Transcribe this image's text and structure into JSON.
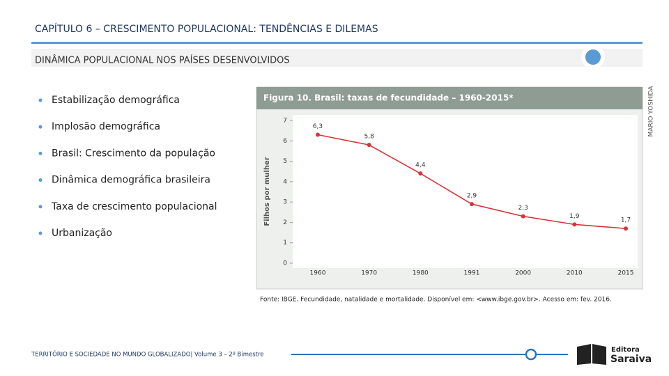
{
  "header": {
    "title": "CAPÍTULO 6 – CRESCIMENTO POPULACIONAL: TENDÊNCIAS E DILEMAS",
    "subtitle": "DINÂMICA POPULACIONAL NOS PAÍSES DESENVOLVIDOS"
  },
  "bullets": [
    "Estabilização demográfica",
    "Implosão demográfica",
    "Brasil: Crescimento da população",
    "Dinâmica demográfica brasileira",
    "Taxa de crescimento populacional",
    "Urbanização"
  ],
  "credit": "MARIO YOSHIDA",
  "chart_data": {
    "type": "line",
    "title": "Figura 10. Brasil: taxas de fecundidade – 1960-2015*",
    "y_label": "Filhos por mulher",
    "categories": [
      "1960",
      "1970",
      "1980",
      "1991",
      "2000",
      "2010",
      "2015"
    ],
    "values": [
      6.3,
      5.8,
      4.4,
      2.9,
      2.3,
      1.9,
      1.7
    ],
    "value_labels": [
      "6,3",
      "5,8",
      "4,4",
      "2,9",
      "2,3",
      "1,9",
      "1,7"
    ],
    "color": "#d8343b",
    "ylim": [
      0,
      7
    ],
    "yticks": [
      0,
      1,
      2,
      3,
      4,
      5,
      6,
      7
    ],
    "grid": false
  },
  "source": "Fonte: IBGE. Fecundidade, natalidade e mortalidade. Disponível em: <www.ibge.gov.br>. Acesso em: fev. 2016.",
  "footer": "TERRITÓRIO E SOCIEDADE NO MUNDO GLOBALIZADO| Volume 3 – 2º Bimestre",
  "logo": {
    "top": "Editora",
    "bottom": "Saraiva"
  }
}
